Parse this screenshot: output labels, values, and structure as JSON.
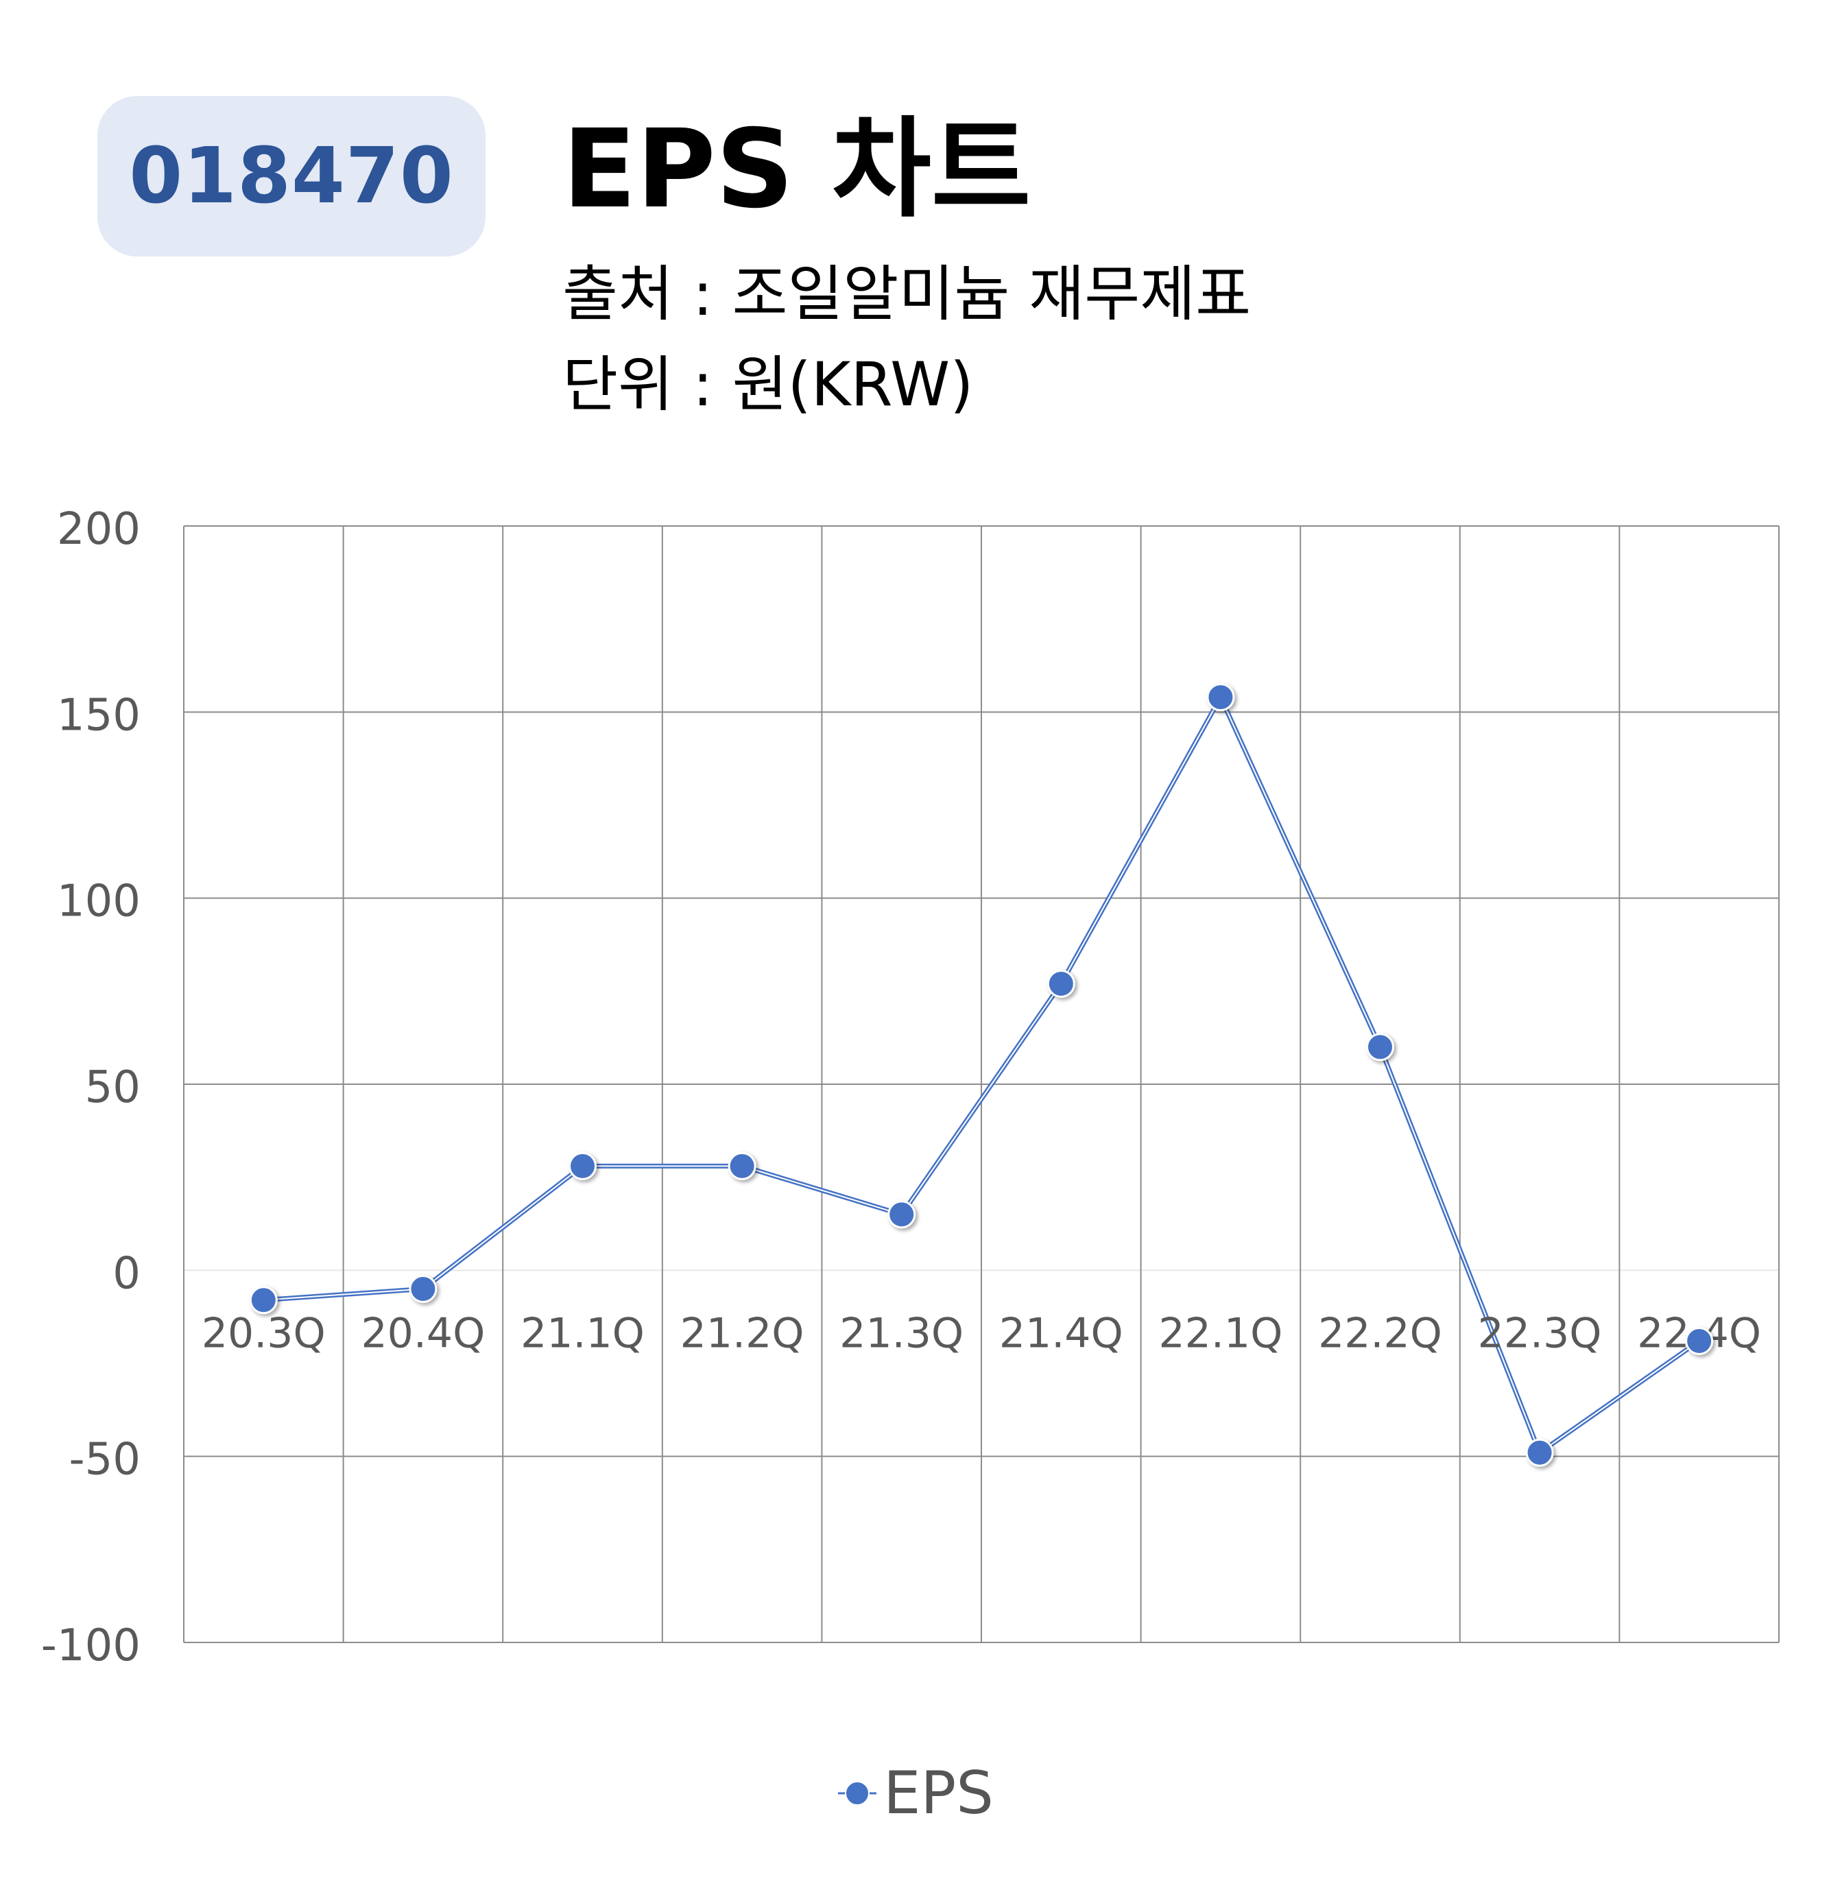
{
  "header": {
    "code": "018470",
    "title": "EPS 차트",
    "source_line": "출처 : 조일알미늄 재무제표",
    "unit_line": "단위 : 원(KRW)"
  },
  "colors": {
    "accent": "#4472c4",
    "badge_bg": "#e3e9f5",
    "badge_text": "#2d5597",
    "grid": "#8c8c8c",
    "axis_text": "#595959"
  },
  "chart_data": {
    "type": "line",
    "categories": [
      "20.3Q",
      "20.4Q",
      "21.1Q",
      "21.2Q",
      "21.3Q",
      "21.4Q",
      "22.1Q",
      "22.2Q",
      "22.3Q",
      "22.4Q"
    ],
    "series": [
      {
        "name": "EPS",
        "values": [
          -8,
          -5,
          28,
          28,
          15,
          77,
          154,
          60,
          -49,
          -19
        ]
      }
    ],
    "yticks": [
      "200",
      "150",
      "100",
      "50",
      "0",
      "-50",
      "-100"
    ],
    "ylim": [
      -100,
      200
    ],
    "grid": true,
    "legend": "bottom-center"
  }
}
